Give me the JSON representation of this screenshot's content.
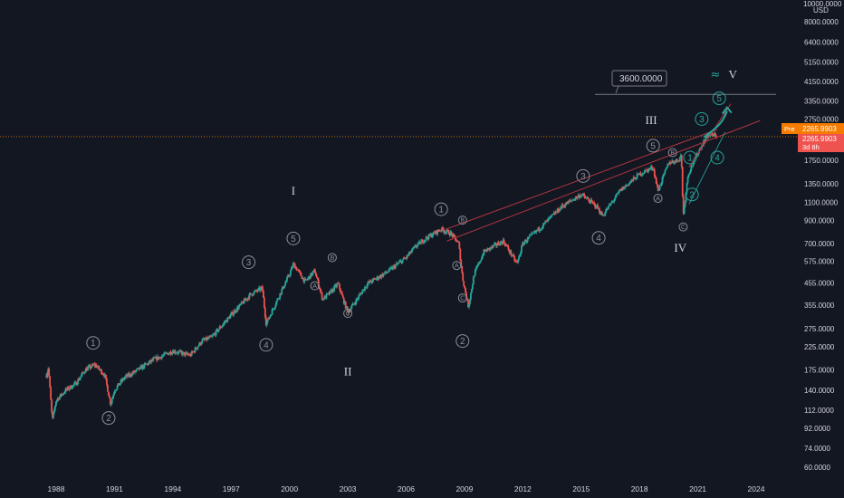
{
  "colors": {
    "background": "#131722",
    "candle_up": "#26a69a",
    "candle_down": "#ef5350",
    "price_tag": "#f57c00",
    "price_tag2": "#ef5350",
    "trendline": "#b0353f",
    "target_line": "#26a69a"
  },
  "chart_data": {
    "type": "candlestick",
    "scale": "log",
    "y_axis": {
      "unit": "USD",
      "top_label": "10000.0000",
      "ticks": [
        "8000.0000",
        "6400.0000",
        "5150.0000",
        "4150.0000",
        "3350.0000",
        "2750.0000",
        "1750.0000",
        "1350.0000",
        "1100.0000",
        "900.0000",
        "700.0000",
        "575.0000",
        "455.0000",
        "355.0000",
        "275.0000",
        "225.0000",
        "175.0000",
        "140.0000",
        "112.0000",
        "92.0000",
        "74.0000",
        "60.0000"
      ],
      "ylim": [
        52,
        10000
      ]
    },
    "x_axis": {
      "ticks": [
        "1988",
        "1991",
        "1994",
        "1997",
        "2000",
        "2003",
        "2006",
        "2009",
        "2012",
        "2015",
        "2018",
        "2021",
        "2024"
      ],
      "xlim": [
        1987.0,
        2025.0
      ]
    },
    "series": [
      {
        "x": [
          1987.5,
          1987.6,
          1987.8,
          1988.0,
          1988.5,
          1989.0,
          1989.5,
          1990.0,
          1990.5,
          1990.8,
          1991.0,
          1991.5,
          1992.0,
          1993.0,
          1994.0,
          1994.9,
          1995.5,
          1996.0,
          1997.0,
          1998.0,
          1998.6,
          1998.8,
          1999.5,
          2000.0,
          2000.2,
          2000.8,
          2001.3,
          2001.7,
          2002.0,
          2002.5,
          2002.8,
          2003.0,
          2003.3,
          2004.0,
          2005.0,
          2006.0,
          2006.5,
          2007.0,
          2007.8,
          2008.3,
          2008.7,
          2008.9,
          2009.2,
          2009.5,
          2010.0,
          2011.0,
          2011.7,
          2012.0,
          2013.0,
          2014.0,
          2015.0,
          2015.8,
          2016.1,
          2017.0,
          2018.0,
          2018.7,
          2018.95,
          2019.5,
          2020.0,
          2020.15,
          2020.25,
          2020.5,
          2021.0,
          2021.5,
          2021.9,
          2022.0
        ],
        "values": [
          165,
          180,
          100,
          125,
          140,
          150,
          175,
          185,
          165,
          120,
          140,
          160,
          170,
          195,
          215,
          205,
          240,
          250,
          320,
          400,
          430,
          290,
          400,
          500,
          560,
          460,
          520,
          380,
          400,
          450,
          370,
          330,
          360,
          450,
          510,
          600,
          680,
          740,
          820,
          780,
          700,
          480,
          350,
          500,
          640,
          720,
          560,
          700,
          850,
          1050,
          1200,
          1050,
          950,
          1250,
          1500,
          1620,
          1250,
          1700,
          1750,
          1850,
          950,
          1500,
          1900,
          2300,
          2300,
          2266
        ]
      }
    ],
    "last_price": "2265.9903",
    "price_labels": {
      "pre_tag": "Pre",
      "pre_value": "2265.9903",
      "last_value": "2265.9903",
      "countdown": "3d 8h"
    },
    "target": {
      "label": "3600.0000",
      "value": 3600
    },
    "annotations": {
      "primary": [
        {
          "label": "I",
          "x": 2000.2,
          "y": 1200
        },
        {
          "label": "II",
          "x": 2003.0,
          "y": 165
        },
        {
          "label": "III",
          "x": 2018.6,
          "y": 2600
        },
        {
          "label": "IV",
          "x": 2020.1,
          "y": 640
        },
        {
          "label": "V",
          "x": 2022.8,
          "y": 4300
        }
      ],
      "waves": [
        {
          "label": "1",
          "x": 1989.9,
          "y": 235
        },
        {
          "label": "2",
          "x": 1990.7,
          "y": 103
        },
        {
          "label": "3",
          "x": 1997.9,
          "y": 570
        },
        {
          "label": "4",
          "x": 1998.8,
          "y": 230
        },
        {
          "label": "5",
          "x": 2000.2,
          "y": 740
        },
        {
          "label": "1",
          "x": 2007.8,
          "y": 1020
        },
        {
          "label": "2",
          "x": 2008.9,
          "y": 240
        },
        {
          "label": "3",
          "x": 2015.1,
          "y": 1470
        },
        {
          "label": "4",
          "x": 2015.9,
          "y": 745
        },
        {
          "label": "5",
          "x": 2018.7,
          "y": 2050
        }
      ],
      "subwaves": [
        {
          "label": "A",
          "x": 2001.3,
          "y": 440
        },
        {
          "label": "B",
          "x": 2002.2,
          "y": 600
        },
        {
          "label": "C",
          "x": 2003.0,
          "y": 325
        },
        {
          "label": "A",
          "x": 2008.6,
          "y": 550
        },
        {
          "label": "B",
          "x": 2008.9,
          "y": 905
        },
        {
          "label": "C",
          "x": 2008.9,
          "y": 385
        },
        {
          "label": "A",
          "x": 2018.95,
          "y": 1150
        },
        {
          "label": "B",
          "x": 2019.7,
          "y": 1900
        },
        {
          "label": "C",
          "x": 2020.25,
          "y": 840
        }
      ],
      "teal_waves": [
        {
          "label": "1",
          "x": 2020.6,
          "y": 1800
        },
        {
          "label": "2",
          "x": 2020.7,
          "y": 1200
        },
        {
          "label": "3",
          "x": 2021.2,
          "y": 2750
        },
        {
          "label": "4",
          "x": 2022.0,
          "y": 1800
        },
        {
          "label": "5",
          "x": 2022.1,
          "y": 3450
        }
      ],
      "teal_symbol": {
        "label": "≈",
        "x": 2021.9,
        "y": 4300
      }
    }
  }
}
